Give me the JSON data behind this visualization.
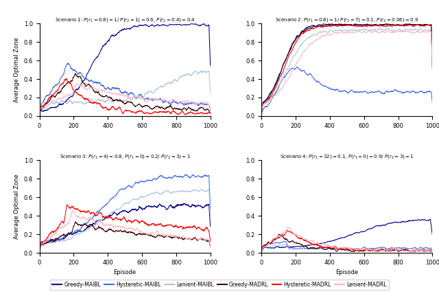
{
  "titles": [
    "Scenario 1: $P(r_1=0.8)=1$/ $P(r_2=1)=0.6$, $P(r_2=0.4)=0.4$",
    "Scenario 2: $P(r_1=0.8)=1$/ $P(r_2=7)=0.1$, $P(r_2=0.06)=0.9$",
    "Scenario 3: $P(r_1=4)=0.8$, $P(r_1=0)=0.2$/ $P(r_2=3)=1$",
    "Scenario 4: $P(r_1=32)=0.1$, $P(r_1=0)=0.9$/ $P(r_2=3)=1$"
  ],
  "ylabel": "Average Optimal Zone",
  "xlabel": "Episode",
  "n_episodes": 1000,
  "colors": {
    "greedy_maibl": "#00008B",
    "hysteretic_maibl": "#4169E1",
    "lenient_maibl": "#B0C4DE",
    "greedy_madrl": "#3B0000",
    "hysteretic_madrl": "#FF0000",
    "lenient_madrl": "#FFB6C1"
  },
  "legend_labels": [
    "Greedy-MAIBL",
    "Hysteretic-MAIBL",
    "Lenient-MAIBL",
    "Greedy-MADRL",
    "Hysteretic-MADRL",
    "Lenient-MADRL"
  ]
}
